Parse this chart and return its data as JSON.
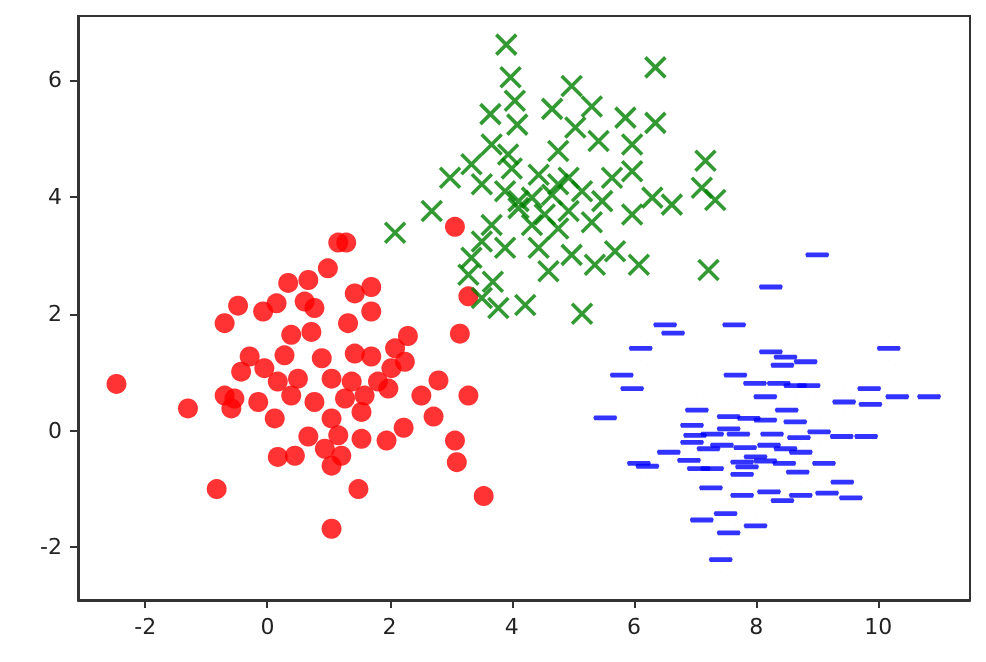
{
  "chart_data": {
    "type": "scatter",
    "xlim": [
      -3.1,
      11.5
    ],
    "ylim": [
      -2.9,
      7.1
    ],
    "xticks": [
      -2,
      0,
      2,
      4,
      6,
      8,
      10
    ],
    "yticks": [
      -2,
      0,
      2,
      4,
      6
    ],
    "grid": false,
    "series": [
      {
        "color": "#ff0000",
        "marker": "circle",
        "x": [
          -2.47,
          -1.3,
          -0.83,
          1.05,
          1.49,
          3.54,
          3.07,
          3.29,
          3.15,
          3.29,
          3.07,
          3.1,
          2.8,
          2.72,
          2.52,
          2.23,
          1.95,
          1.16,
          1.29,
          0.99,
          0.34,
          0.67,
          1.7,
          1.43,
          -0.48,
          -0.7,
          -0.07,
          0.15,
          0.61,
          0.77,
          1.32,
          1.7,
          0.39,
          0.72,
          2.3,
          2.09,
          1.43,
          1.7,
          -0.29,
          -0.43,
          -0.05,
          0.28,
          0.89,
          2.25,
          2.03,
          0.17,
          0.5,
          1.05,
          1.38,
          1.81,
          -0.7,
          -0.54,
          -0.15,
          0.39,
          0.77,
          1.27,
          1.59,
          1.98,
          -0.59,
          0.12,
          1.05,
          1.54,
          1.16,
          0.67,
          1.54,
          0.17,
          0.45,
          1.05,
          1.21,
          0.94
        ],
        "values": [
          0.8,
          0.38,
          -1.0,
          -1.68,
          -1.0,
          -1.12,
          3.49,
          2.3,
          1.66,
          0.6,
          -0.17,
          -0.54,
          0.86,
          0.24,
          0.6,
          0.05,
          -0.17,
          3.22,
          3.22,
          2.78,
          2.53,
          2.58,
          2.46,
          2.35,
          2.14,
          1.84,
          2.04,
          2.18,
          2.21,
          2.1,
          1.84,
          2.04,
          1.64,
          1.69,
          1.62,
          1.41,
          1.32,
          1.27,
          1.27,
          1.01,
          1.07,
          1.29,
          1.24,
          1.18,
          1.07,
          0.84,
          0.89,
          0.89,
          0.84,
          0.84,
          0.6,
          0.55,
          0.49,
          0.6,
          0.49,
          0.55,
          0.6,
          0.72,
          0.38,
          0.21,
          0.21,
          0.32,
          -0.08,
          -0.1,
          -0.14,
          -0.45,
          -0.43,
          -0.6,
          -0.43,
          -0.31
        ]
      },
      {
        "color": "#008000",
        "marker": "cross",
        "x": [
          3.91,
          6.35,
          3.98,
          4.98,
          4.05,
          3.65,
          4.66,
          5.31,
          4.09,
          5.86,
          6.35,
          5.04,
          3.67,
          5.42,
          5.97,
          3.34,
          3.94,
          4.76,
          7.17,
          2.99,
          3.51,
          4.44,
          4.93,
          5.97,
          7.11,
          7.33,
          3.89,
          4.33,
          4.66,
          5.15,
          5.48,
          6.3,
          6.62,
          2.69,
          4.11,
          4.54,
          4.93,
          5.97,
          2.09,
          3.67,
          4.33,
          4.76,
          5.31,
          3.51,
          3.89,
          4.44,
          4.98,
          5.69,
          3.34,
          4.6,
          5.36,
          6.08,
          7.22,
          3.29,
          3.69,
          3.51,
          3.78,
          4.22,
          5.15,
          4.11,
          4.76,
          4.0,
          5.64
        ],
        "values": [
          6.61,
          6.22,
          6.05,
          5.9,
          5.65,
          5.42,
          5.51,
          5.55,
          5.24,
          5.36,
          5.27,
          5.19,
          4.9,
          4.96,
          4.9,
          4.56,
          4.73,
          4.79,
          4.62,
          4.33,
          4.22,
          4.38,
          4.33,
          4.44,
          4.16,
          3.95,
          4.1,
          3.99,
          4.04,
          4.1,
          3.93,
          3.99,
          3.87,
          3.76,
          3.81,
          3.7,
          3.76,
          3.7,
          3.39,
          3.52,
          3.52,
          3.46,
          3.57,
          3.24,
          3.13,
          3.13,
          3.01,
          3.07,
          2.96,
          2.73,
          2.84,
          2.84,
          2.75,
          2.67,
          2.55,
          2.27,
          2.1,
          2.15,
          2.0,
          3.93,
          4.22,
          4.49,
          4.33
        ]
      },
      {
        "color": "#0000ff",
        "x": [
          9.0,
          8.24,
          6.51,
          6.64,
          7.64,
          6.11,
          10.17,
          8.24,
          8.48,
          8.43,
          8.81,
          5.8,
          7.66,
          5.97,
          7.98,
          8.37,
          8.64,
          8.86,
          9.85,
          8.15,
          10.31,
          10.83,
          9.44,
          9.87,
          7.03,
          8.5,
          5.53,
          7.55,
          7.88,
          8.15,
          8.64,
          6.95,
          7.55,
          9.03,
          7.0,
          7.28,
          7.71,
          8.26,
          8.7,
          9.4,
          9.8,
          6.95,
          7.44,
          7.82,
          8.21,
          7.22,
          8.48,
          6.57,
          8.73,
          7.99,
          6.9,
          7.77,
          8.15,
          6.08,
          6.22,
          8.46,
          9.11,
          7.06,
          7.28,
          7.85,
          7.77,
          8.68,
          9.41,
          7.26,
          7.77,
          8.21,
          8.43,
          8.73,
          9.16,
          9.55,
          7.5,
          7.11,
          7.99,
          7.55,
          7.42
        ],
        "values": [
          3.01,
          2.46,
          1.81,
          1.67,
          1.81,
          1.41,
          1.41,
          1.35,
          1.26,
          1.12,
          1.18,
          0.95,
          0.95,
          0.72,
          0.81,
          0.81,
          0.77,
          0.77,
          0.72,
          0.58,
          0.58,
          0.58,
          0.49,
          0.45,
          0.35,
          0.35,
          0.22,
          0.24,
          0.21,
          0.18,
          0.15,
          0.09,
          0.03,
          -0.02,
          -0.08,
          -0.06,
          -0.06,
          -0.06,
          -0.12,
          -0.1,
          -0.1,
          -0.2,
          -0.25,
          -0.29,
          -0.25,
          -0.31,
          -0.31,
          -0.37,
          -0.37,
          -0.45,
          -0.51,
          -0.54,
          -0.52,
          -0.56,
          -0.61,
          -0.56,
          -0.56,
          -0.65,
          -0.65,
          -0.62,
          -0.75,
          -0.71,
          -0.88,
          -0.98,
          -1.11,
          -1.05,
          -1.2,
          -1.11,
          -1.07,
          -1.15,
          -1.42,
          -1.53,
          -1.63,
          -1.75,
          -2.21
        ]
      }
    ]
  }
}
